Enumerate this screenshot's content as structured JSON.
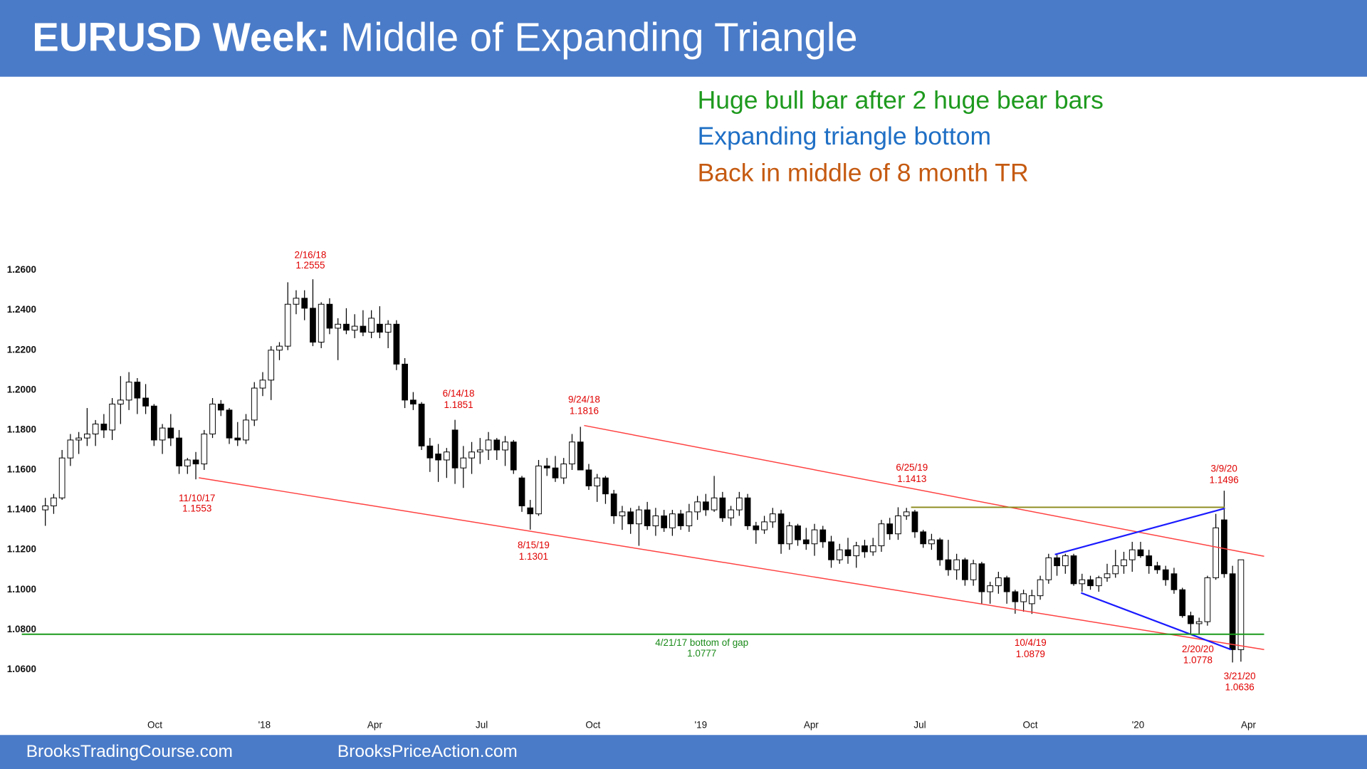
{
  "header": {
    "title_bold": "EURUSD Week:",
    "title": "Middle of Expanding Triangle"
  },
  "notes": [
    {
      "text": "Huge bull bar after 2 huge bear bars",
      "color": "#1e9a1e"
    },
    {
      "text": "Expanding triangle bottom",
      "color": "#1f6fc5"
    },
    {
      "text": "Back in middle of 8 month TR",
      "color": "#c55a11"
    }
  ],
  "footer": [
    "BrooksTradingCourse.com",
    "BrooksPriceAction.com"
  ],
  "chart_data": {
    "type": "candlestick",
    "up_color": "#ffffff",
    "down_color": "#000000",
    "xlim": [
      -4,
      150
    ],
    "xticks": [
      {
        "value": 13.1,
        "label": "Oct"
      },
      {
        "value": 26.2,
        "label": "'18"
      },
      {
        "value": 39.4,
        "label": "Apr"
      },
      {
        "value": 52.2,
        "label": "Jul"
      },
      {
        "value": 65.5,
        "label": "Oct"
      },
      {
        "value": 78.4,
        "label": "'19"
      },
      {
        "value": 91.6,
        "label": "Apr"
      },
      {
        "value": 104.6,
        "label": "Jul"
      },
      {
        "value": 117.8,
        "label": "Oct"
      },
      {
        "value": 130.7,
        "label": "'20"
      },
      {
        "value": 143.9,
        "label": "Apr"
      }
    ],
    "ylim": [
      1.05,
      1.27
    ],
    "yticks": [
      {
        "value": 1.26,
        "label": "1.2600"
      },
      {
        "value": 1.24,
        "label": "1.2400"
      },
      {
        "value": 1.22,
        "label": "1.2200"
      },
      {
        "value": 1.2,
        "label": "1.2000"
      },
      {
        "value": 1.18,
        "label": "1.1800"
      },
      {
        "value": 1.16,
        "label": "1.1600"
      },
      {
        "value": 1.14,
        "label": "1.1400"
      },
      {
        "value": 1.12,
        "label": "1.1200"
      },
      {
        "value": 1.1,
        "label": "1.1000"
      },
      {
        "value": 1.08,
        "label": "1.0800"
      },
      {
        "value": 1.06,
        "label": "1.0600"
      }
    ],
    "grid": false,
    "open": [
      1.14,
      1.142,
      1.146,
      1.166,
      1.175,
      1.176,
      1.178,
      1.183,
      1.18,
      1.193,
      1.195,
      1.204,
      1.196,
      1.192,
      1.175,
      1.181,
      1.176,
      1.162,
      1.165,
      1.163,
      1.178,
      1.193,
      1.19,
      1.176,
      1.175,
      1.185,
      1.201,
      1.205,
      1.22,
      1.222,
      1.243,
      1.246,
      1.241,
      1.224,
      1.243,
      1.231,
      1.233,
      1.23,
      1.232,
      1.229,
      1.233,
      1.229,
      1.233,
      1.213,
      1.195,
      1.193,
      1.172,
      1.168,
      1.165,
      1.18,
      1.161,
      1.166,
      1.169,
      1.17,
      1.175,
      1.17,
      1.174,
      1.156,
      1.141,
      1.138,
      1.162,
      1.161,
      1.156,
      1.163,
      1.174,
      1.16,
      1.152,
      1.156,
      1.148,
      1.137,
      1.139,
      1.133,
      1.14,
      1.132,
      1.137,
      1.131,
      1.138,
      1.132,
      1.139,
      1.144,
      1.14,
      1.146,
      1.136,
      1.14,
      1.146,
      1.132,
      1.13,
      1.134,
      1.138,
      1.123,
      1.132,
      1.125,
      1.123,
      1.13,
      1.124,
      1.115,
      1.12,
      1.117,
      1.122,
      1.119,
      1.122,
      1.133,
      1.128,
      1.137,
      1.139,
      1.129,
      1.123,
      1.125,
      1.115,
      1.11,
      1.115,
      1.105,
      1.113,
      1.099,
      1.102,
      1.106,
      1.099,
      1.094,
      1.093,
      1.097,
      1.105,
      1.116,
      1.112,
      1.117,
      1.103,
      1.105,
      1.102,
      1.106,
      1.108,
      1.112,
      1.115,
      1.12,
      1.117,
      1.112,
      1.11,
      1.108,
      1.1,
      1.087,
      1.083,
      1.084,
      1.106,
      1.135,
      1.108,
      1.07
    ],
    "high": [
      1.146,
      1.148,
      1.17,
      1.178,
      1.179,
      1.191,
      1.185,
      1.188,
      1.196,
      1.207,
      1.209,
      1.206,
      1.203,
      1.193,
      1.183,
      1.188,
      1.18,
      1.166,
      1.169,
      1.18,
      1.196,
      1.195,
      1.191,
      1.184,
      1.188,
      1.204,
      1.209,
      1.222,
      1.224,
      1.254,
      1.25,
      1.25,
      1.2555,
      1.244,
      1.246,
      1.236,
      1.241,
      1.238,
      1.24,
      1.24,
      1.242,
      1.235,
      1.235,
      1.216,
      1.199,
      1.194,
      1.176,
      1.173,
      1.171,
      1.1851,
      1.172,
      1.174,
      1.176,
      1.179,
      1.176,
      1.177,
      1.175,
      1.157,
      1.145,
      1.165,
      1.166,
      1.167,
      1.166,
      1.178,
      1.1816,
      1.163,
      1.158,
      1.157,
      1.15,
      1.142,
      1.141,
      1.142,
      1.144,
      1.141,
      1.14,
      1.14,
      1.14,
      1.143,
      1.147,
      1.148,
      1.157,
      1.149,
      1.142,
      1.149,
      1.148,
      1.134,
      1.137,
      1.141,
      1.14,
      1.134,
      1.133,
      1.131,
      1.133,
      1.132,
      1.127,
      1.123,
      1.126,
      1.124,
      1.125,
      1.126,
      1.135,
      1.136,
      1.1413,
      1.141,
      1.14,
      1.13,
      1.128,
      1.126,
      1.125,
      1.118,
      1.116,
      1.115,
      1.114,
      1.104,
      1.109,
      1.107,
      1.1,
      1.1,
      1.1,
      1.107,
      1.118,
      1.118,
      1.118,
      1.118,
      1.108,
      1.107,
      1.107,
      1.113,
      1.12,
      1.119,
      1.124,
      1.124,
      1.12,
      1.114,
      1.112,
      1.111,
      1.101,
      1.089,
      1.086,
      1.107,
      1.138,
      1.1496,
      1.112,
      1.115
    ],
    "low": [
      1.132,
      1.138,
      1.145,
      1.162,
      1.168,
      1.172,
      1.172,
      1.176,
      1.175,
      1.183,
      1.19,
      1.188,
      1.188,
      1.172,
      1.168,
      1.172,
      1.158,
      1.158,
      1.1553,
      1.16,
      1.176,
      1.187,
      1.173,
      1.172,
      1.173,
      1.182,
      1.197,
      1.195,
      1.215,
      1.22,
      1.238,
      1.235,
      1.222,
      1.221,
      1.228,
      1.215,
      1.228,
      1.226,
      1.227,
      1.226,
      1.226,
      1.221,
      1.21,
      1.191,
      1.19,
      1.17,
      1.159,
      1.154,
      1.156,
      1.153,
      1.151,
      1.158,
      1.163,
      1.165,
      1.165,
      1.162,
      1.158,
      1.139,
      1.1301,
      1.137,
      1.157,
      1.154,
      1.153,
      1.16,
      1.162,
      1.15,
      1.144,
      1.143,
      1.133,
      1.13,
      1.128,
      1.122,
      1.13,
      1.127,
      1.129,
      1.127,
      1.13,
      1.129,
      1.135,
      1.137,
      1.139,
      1.134,
      1.132,
      1.137,
      1.13,
      1.123,
      1.128,
      1.131,
      1.118,
      1.12,
      1.122,
      1.12,
      1.117,
      1.121,
      1.111,
      1.113,
      1.113,
      1.111,
      1.116,
      1.117,
      1.119,
      1.125,
      1.125,
      1.135,
      1.126,
      1.121,
      1.12,
      1.112,
      1.107,
      1.105,
      1.102,
      1.102,
      1.093,
      1.093,
      1.098,
      1.093,
      1.088,
      1.089,
      1.0879,
      1.095,
      1.103,
      1.107,
      1.108,
      1.102,
      1.099,
      1.1,
      1.099,
      1.104,
      1.106,
      1.108,
      1.109,
      1.116,
      1.108,
      1.108,
      1.102,
      1.098,
      1.086,
      1.078,
      1.0778,
      1.082,
      1.105,
      1.106,
      1.0636,
      1.064
    ],
    "close": [
      1.142,
      1.146,
      1.166,
      1.175,
      1.176,
      1.178,
      1.183,
      1.18,
      1.193,
      1.195,
      1.204,
      1.196,
      1.192,
      1.175,
      1.181,
      1.176,
      1.162,
      1.165,
      1.163,
      1.178,
      1.193,
      1.19,
      1.176,
      1.175,
      1.185,
      1.201,
      1.205,
      1.22,
      1.222,
      1.243,
      1.246,
      1.241,
      1.224,
      1.243,
      1.231,
      1.233,
      1.23,
      1.232,
      1.229,
      1.236,
      1.229,
      1.233,
      1.213,
      1.195,
      1.193,
      1.172,
      1.166,
      1.165,
      1.169,
      1.161,
      1.166,
      1.169,
      1.17,
      1.175,
      1.17,
      1.174,
      1.16,
      1.142,
      1.138,
      1.162,
      1.161,
      1.156,
      1.163,
      1.174,
      1.16,
      1.152,
      1.156,
      1.148,
      1.137,
      1.139,
      1.133,
      1.14,
      1.132,
      1.137,
      1.131,
      1.138,
      1.132,
      1.139,
      1.144,
      1.14,
      1.146,
      1.136,
      1.14,
      1.146,
      1.132,
      1.13,
      1.134,
      1.138,
      1.123,
      1.132,
      1.125,
      1.123,
      1.13,
      1.124,
      1.115,
      1.12,
      1.117,
      1.122,
      1.119,
      1.122,
      1.133,
      1.128,
      1.137,
      1.139,
      1.129,
      1.123,
      1.125,
      1.115,
      1.11,
      1.115,
      1.105,
      1.113,
      1.099,
      1.102,
      1.106,
      1.099,
      1.094,
      1.098,
      1.097,
      1.105,
      1.116,
      1.112,
      1.117,
      1.103,
      1.105,
      1.102,
      1.106,
      1.108,
      1.112,
      1.115,
      1.12,
      1.117,
      1.112,
      1.11,
      1.105,
      1.1,
      1.087,
      1.083,
      1.084,
      1.106,
      1.131,
      1.108,
      1.07,
      1.115
    ],
    "annotations": [
      {
        "date": "2/16/18",
        "price": 1.2555
      },
      {
        "date": "11/10/17",
        "price": 1.1553
      },
      {
        "date": "6/14/18",
        "price": 1.1851
      },
      {
        "date": "9/24/18",
        "price": 1.1816
      },
      {
        "date": "8/15/19",
        "price": 1.1301
      },
      {
        "date": "6/25/19",
        "price": 1.1413
      },
      {
        "date": "4/21/17 bottom of gap",
        "price": 1.0777
      },
      {
        "date": "10/4/19",
        "price": 1.0879
      },
      {
        "date": "2/20/20",
        "price": 1.0778
      },
      {
        "date": "3/9/20",
        "price": 1.1496
      },
      {
        "date": "3/21/20",
        "price": 1.0636
      }
    ]
  }
}
